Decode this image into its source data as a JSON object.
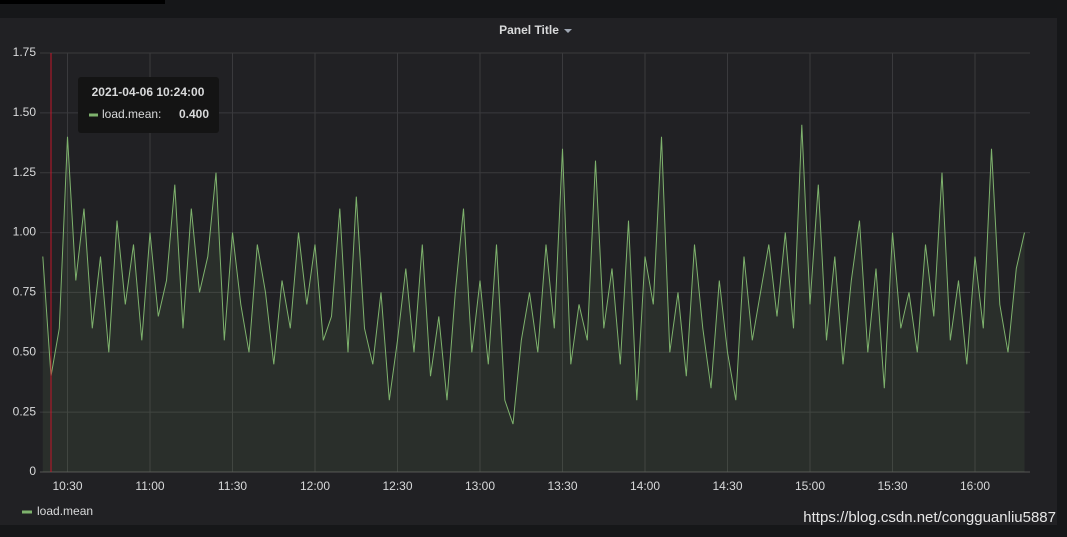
{
  "chart_data": {
    "type": "line",
    "title": "Panel Title",
    "x": [
      "10:21",
      "10:24",
      "10:27",
      "10:30",
      "10:33",
      "10:36",
      "10:39",
      "10:42",
      "10:45",
      "10:48",
      "10:51",
      "10:54",
      "10:57",
      "11:00",
      "11:03",
      "11:06",
      "11:09",
      "11:12",
      "11:15",
      "11:18",
      "11:21",
      "11:24",
      "11:27",
      "11:30",
      "11:33",
      "11:36",
      "11:39",
      "11:42",
      "11:45",
      "11:48",
      "11:51",
      "11:54",
      "11:57",
      "12:00",
      "12:03",
      "12:06",
      "12:09",
      "12:12",
      "12:15",
      "12:18",
      "12:21",
      "12:24",
      "12:27",
      "12:30",
      "12:33",
      "12:36",
      "12:39",
      "12:42",
      "12:45",
      "12:48",
      "12:51",
      "12:54",
      "12:57",
      "13:00",
      "13:03",
      "13:06",
      "13:09",
      "13:12",
      "13:15",
      "13:18",
      "13:21",
      "13:24",
      "13:27",
      "13:30",
      "13:33",
      "13:36",
      "13:39",
      "13:42",
      "13:45",
      "13:48",
      "13:51",
      "13:54",
      "13:57",
      "14:00",
      "14:03",
      "14:06",
      "14:09",
      "14:12",
      "14:15",
      "14:18",
      "14:21",
      "14:24",
      "14:27",
      "14:30",
      "14:33",
      "14:36",
      "14:39",
      "14:42",
      "14:45",
      "14:48",
      "14:51",
      "14:54",
      "14:57",
      "15:00",
      "15:03",
      "15:06",
      "15:09",
      "15:12",
      "15:15",
      "15:18",
      "15:21",
      "15:24",
      "15:27",
      "15:30",
      "15:33",
      "15:36",
      "15:39",
      "15:42",
      "15:45",
      "15:48",
      "15:51",
      "15:54",
      "15:57",
      "16:00",
      "16:03",
      "16:06",
      "16:09",
      "16:12",
      "16:15",
      "16:18"
    ],
    "series": [
      {
        "name": "load.mean",
        "color": "#7eb26d",
        "values": [
          0.9,
          0.4,
          0.6,
          1.4,
          0.8,
          1.1,
          0.6,
          0.9,
          0.5,
          1.05,
          0.7,
          0.95,
          0.55,
          1.0,
          0.65,
          0.8,
          1.2,
          0.6,
          1.1,
          0.75,
          0.9,
          1.25,
          0.55,
          1.0,
          0.7,
          0.5,
          0.95,
          0.75,
          0.45,
          0.8,
          0.6,
          1.0,
          0.7,
          0.95,
          0.55,
          0.65,
          1.1,
          0.5,
          1.15,
          0.6,
          0.45,
          0.75,
          0.3,
          0.55,
          0.85,
          0.5,
          0.95,
          0.4,
          0.65,
          0.3,
          0.75,
          1.1,
          0.5,
          0.8,
          0.45,
          0.95,
          0.3,
          0.2,
          0.55,
          0.75,
          0.5,
          0.95,
          0.6,
          1.35,
          0.45,
          0.7,
          0.55,
          1.3,
          0.6,
          0.85,
          0.45,
          1.05,
          0.3,
          0.9,
          0.7,
          1.4,
          0.5,
          0.75,
          0.4,
          0.95,
          0.6,
          0.35,
          0.8,
          0.5,
          0.3,
          0.9,
          0.55,
          0.75,
          0.95,
          0.65,
          1.0,
          0.6,
          1.45,
          0.7,
          1.2,
          0.55,
          0.9,
          0.45,
          0.8,
          1.05,
          0.5,
          0.85,
          0.35,
          1.0,
          0.6,
          0.75,
          0.5,
          0.95,
          0.65,
          1.25,
          0.55,
          0.8,
          0.45,
          0.9,
          0.6,
          1.35,
          0.7,
          0.5,
          0.85,
          1.0
        ]
      }
    ],
    "xlim": [
      "10:20",
      "16:20"
    ],
    "xticks": [
      "10:30",
      "11:00",
      "11:30",
      "12:00",
      "12:30",
      "13:00",
      "13:30",
      "14:00",
      "14:30",
      "15:00",
      "15:30",
      "16:00"
    ],
    "ylim": [
      0,
      1.75
    ],
    "yticks": [
      0,
      0.25,
      {
        "value": 0.5,
        "label": "0.50"
      },
      0.75,
      {
        "value": 1,
        "label": "1.00"
      },
      1.25,
      {
        "value": 1.5,
        "label": "1.50"
      },
      1.75
    ],
    "grid": true,
    "fill": true,
    "crosshair": "10:24",
    "tooltip": {
      "time": "2021-04-06 10:24:00",
      "label": "load.mean:",
      "value": "0.400"
    },
    "legend": "bottom-left"
  },
  "watermark": "https://blog.csdn.net/congguanliu5887"
}
